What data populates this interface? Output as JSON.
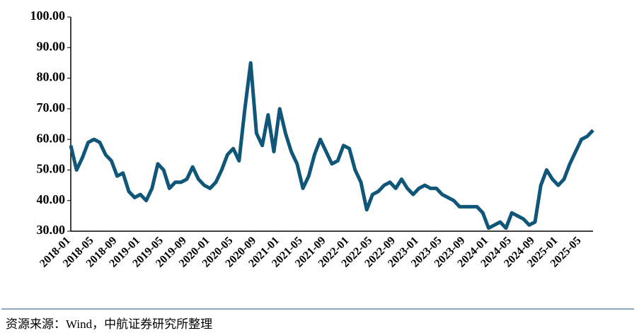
{
  "chart_data": {
    "type": "line",
    "x": [
      "2018-01",
      null,
      null,
      null,
      "2018-05",
      null,
      null,
      null,
      "2018-09",
      null,
      null,
      null,
      "2019-01",
      null,
      null,
      null,
      "2019-05",
      null,
      null,
      null,
      "2019-09",
      null,
      null,
      null,
      "2020-01",
      null,
      null,
      null,
      "2020-05",
      null,
      null,
      null,
      "2020-09",
      null,
      null,
      null,
      "2021-01",
      null,
      null,
      null,
      "2021-05",
      null,
      null,
      null,
      "2021-09",
      null,
      null,
      null,
      "2022-01",
      null,
      null,
      null,
      "2022-05",
      null,
      null,
      null,
      "2022-09",
      null,
      null,
      null,
      "2023-01",
      null,
      null,
      null,
      "2023-05",
      null,
      null,
      null,
      "2023-09",
      null,
      null,
      null,
      "2024-01",
      null,
      null,
      null,
      "2024-05",
      null,
      null,
      null,
      "2024-09",
      null,
      null,
      null,
      "2025-01",
      null,
      null,
      null,
      "2025-05",
      null,
      null
    ],
    "series": [
      {
        "color": "#0f5679",
        "values": [
          58,
          50,
          54,
          59,
          60,
          59,
          55,
          53,
          48,
          49,
          43,
          41,
          42,
          40,
          44,
          52,
          50,
          44,
          46,
          46,
          47,
          51,
          47,
          45,
          44,
          46,
          50,
          55,
          57,
          53,
          70,
          85,
          62,
          58,
          68,
          56,
          70,
          62,
          56,
          52,
          44,
          48,
          55,
          60,
          56,
          52,
          53,
          58,
          57,
          50,
          46,
          37,
          42,
          43,
          45,
          46,
          44,
          47,
          44,
          42,
          44,
          45,
          44,
          44,
          42,
          41,
          40,
          38,
          38,
          38,
          38,
          36,
          31,
          32,
          33,
          31,
          36,
          35,
          34,
          32,
          33,
          45,
          50,
          47,
          45,
          47,
          52,
          56,
          60,
          61,
          63
        ]
      }
    ],
    "ylim": [
      30,
      100
    ],
    "yticks": [
      {
        "value": 30,
        "label": "30.00"
      },
      {
        "value": 40,
        "label": "40.00"
      },
      {
        "value": 50,
        "label": "50.00"
      },
      {
        "value": 60,
        "label": "60.00"
      },
      {
        "value": 70,
        "label": "70.00"
      },
      {
        "value": 80,
        "label": "80.00"
      },
      {
        "value": 90,
        "label": "90.00"
      },
      {
        "value": 100,
        "label": "100.00"
      }
    ],
    "grid": false,
    "source": "资源来源：Wind，中航证券研究所整理"
  }
}
